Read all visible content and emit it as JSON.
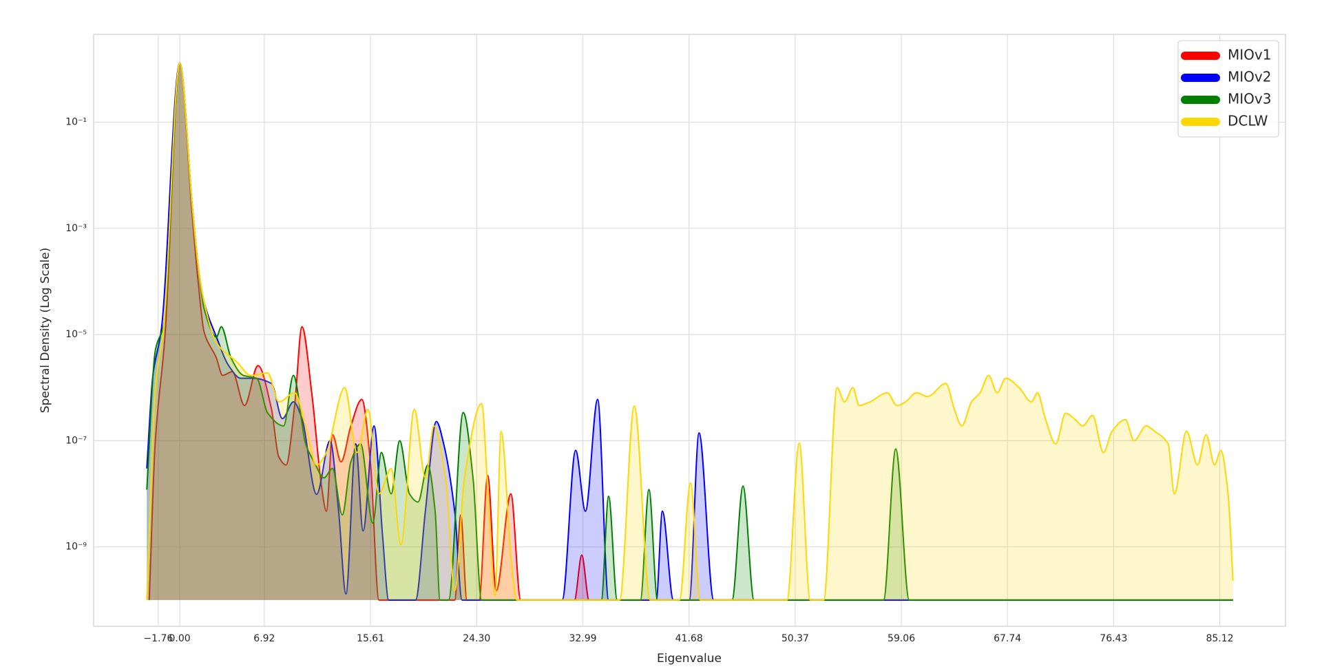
{
  "chart_data": {
    "type": "line",
    "x_label": "Eigenvalue",
    "y_label": "Spectral Density (Log Scale)",
    "log_y": true,
    "grid": true,
    "fill": true,
    "legend": "upper right",
    "xlim": [
      -7.05,
      90.5
    ],
    "ylim": [
      3.2e-11,
      4.5
    ],
    "xticks": [
      {
        "value": -1.76,
        "label": "−1.76"
      },
      {
        "value": 0,
        "label": "0.00"
      },
      6.92,
      15.61,
      {
        "value": 24.3,
        "label": "24.30"
      },
      32.99,
      41.68,
      50.37,
      59.06,
      67.74,
      76.43,
      85.12
    ],
    "yticks": [
      {
        "value": 0.1,
        "label": "10⁻¹"
      },
      {
        "value": 0.001,
        "label": "10⁻³"
      },
      {
        "value": 1e-05,
        "label": "10⁻⁵"
      },
      {
        "value": 1e-07,
        "label": "10⁻⁷"
      },
      {
        "value": 1e-09,
        "label": "10⁻⁹"
      }
    ],
    "series": [
      {
        "name": "MIOv1",
        "color": "#ff0000",
        "x": [
          -2.5,
          -2.0,
          -1.2,
          0,
          1.0,
          1.5,
          2.0,
          3.0,
          3.5,
          4.3,
          5.3,
          6.4,
          7.5,
          8.1,
          8.7,
          9.4,
          10.0,
          10.8,
          11.6,
          12.0,
          12.5,
          13.2,
          14.0,
          14.9,
          15.6,
          16.3,
          22.5,
          23.0,
          23.5,
          24.5,
          25.2,
          25.9,
          27.1,
          27.9,
          32.3,
          32.9,
          33.5,
          86.2
        ],
        "values": [
          1e-10,
          1e-07,
          1e-05,
          1.3,
          0.002,
          0.0001,
          1.1e-05,
          3.6e-06,
          1.7e-06,
          2e-06,
          4.6e-07,
          2.6e-06,
          4e-07,
          5e-08,
          3.5e-08,
          4.6e-07,
          1.4e-05,
          8e-07,
          1.4e-08,
          4.7e-09,
          1.3e-07,
          4e-08,
          1.9e-07,
          6e-07,
          4e-08,
          1e-10,
          1e-10,
          4e-09,
          1e-10,
          1e-10,
          2.2e-08,
          1.5e-10,
          1e-08,
          1e-10,
          1e-10,
          7e-10,
          1e-10,
          1e-10
        ]
      },
      {
        "name": "MIOv2",
        "color": "#0000ff",
        "x": [
          -2.7,
          -2.2,
          -1.5,
          0,
          1.0,
          1.5,
          2.0,
          3.0,
          4.0,
          5.0,
          6.0,
          7.5,
          8.4,
          9.3,
          10.0,
          11.2,
          12.3,
          13.0,
          13.6,
          14.4,
          15.0,
          15.9,
          16.6,
          17.1,
          19.3,
          20.1,
          21.0,
          21.6,
          22.5,
          23.1,
          31.3,
          32.4,
          33.2,
          34.2,
          35.1,
          39.0,
          39.5,
          40.4,
          41.7,
          42.5,
          43.7,
          86.2
        ],
        "values": [
          3e-08,
          1.7e-06,
          1.3e-05,
          1.3,
          0.003,
          0.0002,
          4e-05,
          9e-06,
          2.6e-06,
          1.5e-06,
          1.5e-06,
          1.2e-06,
          2.6e-07,
          5.4e-07,
          2.6e-07,
          9.8e-09,
          1e-07,
          4.7e-09,
          1.3e-10,
          8.7e-08,
          2e-09,
          1.9e-07,
          1.6e-09,
          1e-10,
          1e-10,
          4.7e-09,
          2.3e-07,
          8.7e-08,
          4.7e-09,
          1e-10,
          1e-10,
          6.6e-08,
          4.7e-09,
          6e-07,
          1e-10,
          1e-10,
          4.7e-09,
          1e-10,
          1e-10,
          1.4e-07,
          1e-10,
          1e-10
        ]
      },
      {
        "name": "MIOv3",
        "color": "#008000",
        "x": [
          -2.7,
          -2.0,
          -1.3,
          0,
          1.0,
          1.5,
          2.0,
          3.0,
          3.4,
          4.2,
          5.2,
          6.3,
          7.2,
          8.5,
          9.3,
          10.3,
          11.0,
          11.8,
          12.5,
          13.3,
          14.0,
          14.8,
          15.8,
          16.5,
          17.3,
          18.0,
          18.8,
          19.5,
          20.3,
          20.9,
          21.3,
          22.0,
          23.2,
          24.0,
          24.7,
          34.5,
          35.1,
          35.8,
          37.7,
          38.4,
          39.1,
          45.2,
          46.1,
          47.0,
          57.6,
          58.6,
          59.7,
          86.2
        ],
        "values": [
          1.2e-08,
          5e-06,
          1.6e-05,
          1.3,
          0.003,
          0.0002,
          3e-05,
          9e-06,
          1.4e-05,
          3.6e-06,
          1.7e-06,
          1.5e-06,
          3.3e-07,
          1.9e-07,
          1.7e-06,
          8.7e-08,
          4e-08,
          2e-08,
          3e-08,
          4e-09,
          4e-08,
          8.7e-08,
          2.8e-09,
          6e-08,
          1e-08,
          1e-07,
          1e-08,
          7e-09,
          3.5e-08,
          4.7e-09,
          1e-10,
          1e-10,
          3.4e-07,
          2e-08,
          1e-10,
          1e-10,
          9e-09,
          1e-10,
          1e-10,
          1.2e-08,
          1e-10,
          1e-10,
          1.4e-08,
          1e-10,
          1e-10,
          7e-08,
          1e-10,
          1e-10
        ]
      },
      {
        "name": "DCLW",
        "color": "#ffd700",
        "x": [
          -2.7,
          -2.0,
          -1.3,
          0,
          1.0,
          1.5,
          2.0,
          3.0,
          4.7,
          5.8,
          7.2,
          8.1,
          9.4,
          10.3,
          11.2,
          12.0,
          13.5,
          14.5,
          15.4,
          16.3,
          17.3,
          18.1,
          19.2,
          20.1,
          20.8,
          21.8,
          22.5,
          23.3,
          24.7,
          25.3,
          25.8,
          26.3,
          27.1,
          27.6,
          36.0,
          37.2,
          38.5,
          40.9,
          41.8,
          42.6,
          49.7,
          50.7,
          51.6,
          52.7,
          53.8,
          54.4,
          55.1,
          55.6,
          56.5,
          57.9,
          58.7,
          59.4,
          60.3,
          61.2,
          62.7,
          63.4,
          64.0,
          64.8,
          65.5,
          66.2,
          66.9,
          67.6,
          68.7,
          69.7,
          70.2,
          70.8,
          71.7,
          72.5,
          73.3,
          73.9,
          74.7,
          75.6,
          76.3,
          77.4,
          78.1,
          79.1,
          79.8,
          80.9,
          81.4,
          82.4,
          83.3,
          84.0,
          84.7,
          85.2,
          85.8,
          86.2
        ],
        "values": [
          1e-10,
          1e-06,
          1.5e-05,
          1.3,
          0.003,
          0.0002,
          4e-05,
          7e-06,
          3e-06,
          1.7e-06,
          1.9e-06,
          5.4e-07,
          8e-07,
          1.9e-07,
          3.5e-08,
          6e-08,
          1e-06,
          6e-08,
          3.9e-07,
          1e-08,
          3e-08,
          1.1e-09,
          3.9e-07,
          2e-08,
          1.9e-07,
          1.6e-08,
          1.5e-10,
          2e-08,
          5e-07,
          4.7e-09,
          1.2e-10,
          1.5e-07,
          7e-10,
          1e-10,
          1e-10,
          4.5e-07,
          1e-10,
          1e-10,
          1.6e-08,
          1e-10,
          1e-10,
          9e-08,
          1e-10,
          1e-10,
          1e-06,
          5.4e-07,
          1e-06,
          4.6e-07,
          5.4e-07,
          8e-07,
          4.6e-07,
          5.4e-07,
          8e-07,
          6.8e-07,
          1.2e-06,
          3.9e-07,
          1.9e-07,
          5.4e-07,
          8e-07,
          1.7e-06,
          8e-07,
          1.5e-06,
          1e-06,
          5.4e-07,
          8e-07,
          2.8e-07,
          8.7e-08,
          3.3e-07,
          2.5e-07,
          1.9e-07,
          3e-07,
          6e-08,
          1.5e-07,
          2.5e-07,
          1e-07,
          1.9e-07,
          1.5e-07,
          8.7e-08,
          1e-08,
          1.5e-07,
          3.5e-08,
          1.3e-07,
          3.5e-08,
          6.6e-08,
          1e-08,
          2.3e-10
        ]
      }
    ]
  }
}
